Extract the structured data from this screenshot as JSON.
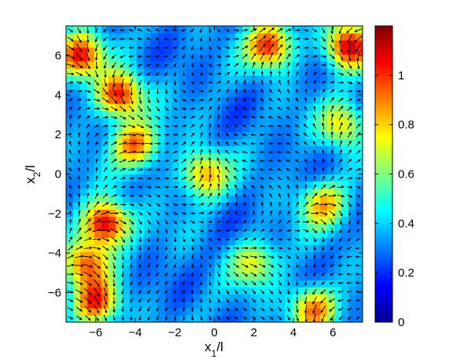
{
  "chart_data": {
    "type": "heatmap",
    "subtype": "vector field (quiver) over scalar magnitude map",
    "xlabel": "x_1/l",
    "ylabel": "x_2/l",
    "xlim": [
      -7.5,
      7.5
    ],
    "ylim": [
      -7.5,
      7.5
    ],
    "x_ticks": [
      "-6",
      "-4",
      "-2",
      "0",
      "2",
      "4",
      "6"
    ],
    "y_ticks": [
      "-6",
      "-4",
      "-2",
      "0",
      "2",
      "4",
      "6"
    ],
    "colorbar": {
      "colormap": "jet",
      "range": [
        0,
        1.2
      ],
      "ticks": [
        "0",
        "0.2",
        "0.4",
        "0.6",
        "0.8",
        "1"
      ]
    },
    "grid": false,
    "hotspots": [
      {
        "x": -5.5,
        "y": -2.5,
        "magnitude": 1.15
      },
      {
        "x": -4.8,
        "y": 4.0,
        "magnitude": 1.05
      },
      {
        "x": -6.8,
        "y": 6.0,
        "magnitude": 1.0
      },
      {
        "x": 2.8,
        "y": 6.5,
        "magnitude": 1.0
      },
      {
        "x": 6.8,
        "y": 6.5,
        "magnitude": 1.1
      },
      {
        "x": -6.0,
        "y": -6.5,
        "magnitude": 0.95
      },
      {
        "x": -4.0,
        "y": 1.5,
        "magnitude": 0.9
      },
      {
        "x": -0.5,
        "y": 0.0,
        "magnitude": 0.85
      },
      {
        "x": 5.0,
        "y": -6.8,
        "magnitude": 0.9
      },
      {
        "x": 2.0,
        "y": -4.5,
        "magnitude": 0.7
      },
      {
        "x": 5.5,
        "y": -1.5,
        "magnitude": 0.8
      },
      {
        "x": 6.5,
        "y": 2.5,
        "magnitude": 0.75
      },
      {
        "x": -6.5,
        "y": -4.5,
        "magnitude": 0.9
      }
    ]
  }
}
